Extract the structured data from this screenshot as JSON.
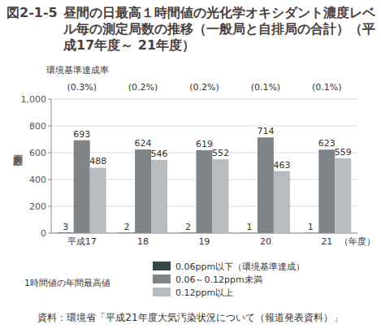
{
  "chart_data": {
    "type": "bar",
    "figure_number": "図2-1-5",
    "title": "昼間の日最高１時間値の光化学オキシダント濃度レベル毎の測定局数の推移（一般局と自排局の合計）（平成17年度～ 21年度）",
    "y_label": "測定局数",
    "x_label": "（年度）",
    "categories": [
      "平成17",
      "18",
      "19",
      "20",
      "21"
    ],
    "series": [
      {
        "name": "0.06ppm以下（環境基準達成）",
        "color": "#37464b",
        "values": [
          3,
          2,
          2,
          1,
          1
        ]
      },
      {
        "name": "0.06～0.12ppm未満",
        "color": "#7e8487",
        "values": [
          693,
          624,
          619,
          714,
          623
        ]
      },
      {
        "name": "0.12ppm以上",
        "color": "#b9bcbe",
        "values": [
          488,
          546,
          552,
          463,
          559
        ]
      }
    ],
    "achievement_rate": {
      "label": "環境基準達成率",
      "values": [
        0.3,
        0.2,
        0.2,
        0.1,
        0.1
      ],
      "value_labels": [
        "(0.3%)",
        "(0.2%)",
        "(0.2%)",
        "(0.1%)",
        "(0.1%)"
      ]
    },
    "legend_title": "1時間値の年間最高値",
    "source": "資料：環境省「平成21年度大気汚染状況について（報道発表資料）」",
    "ylim": [
      0,
      1000
    ],
    "yticks": [
      0,
      200,
      400,
      600,
      800,
      {
        "value": 1000,
        "label": "1,000"
      }
    ],
    "grid": true,
    "data_labels": true,
    "legend": "bottom"
  }
}
